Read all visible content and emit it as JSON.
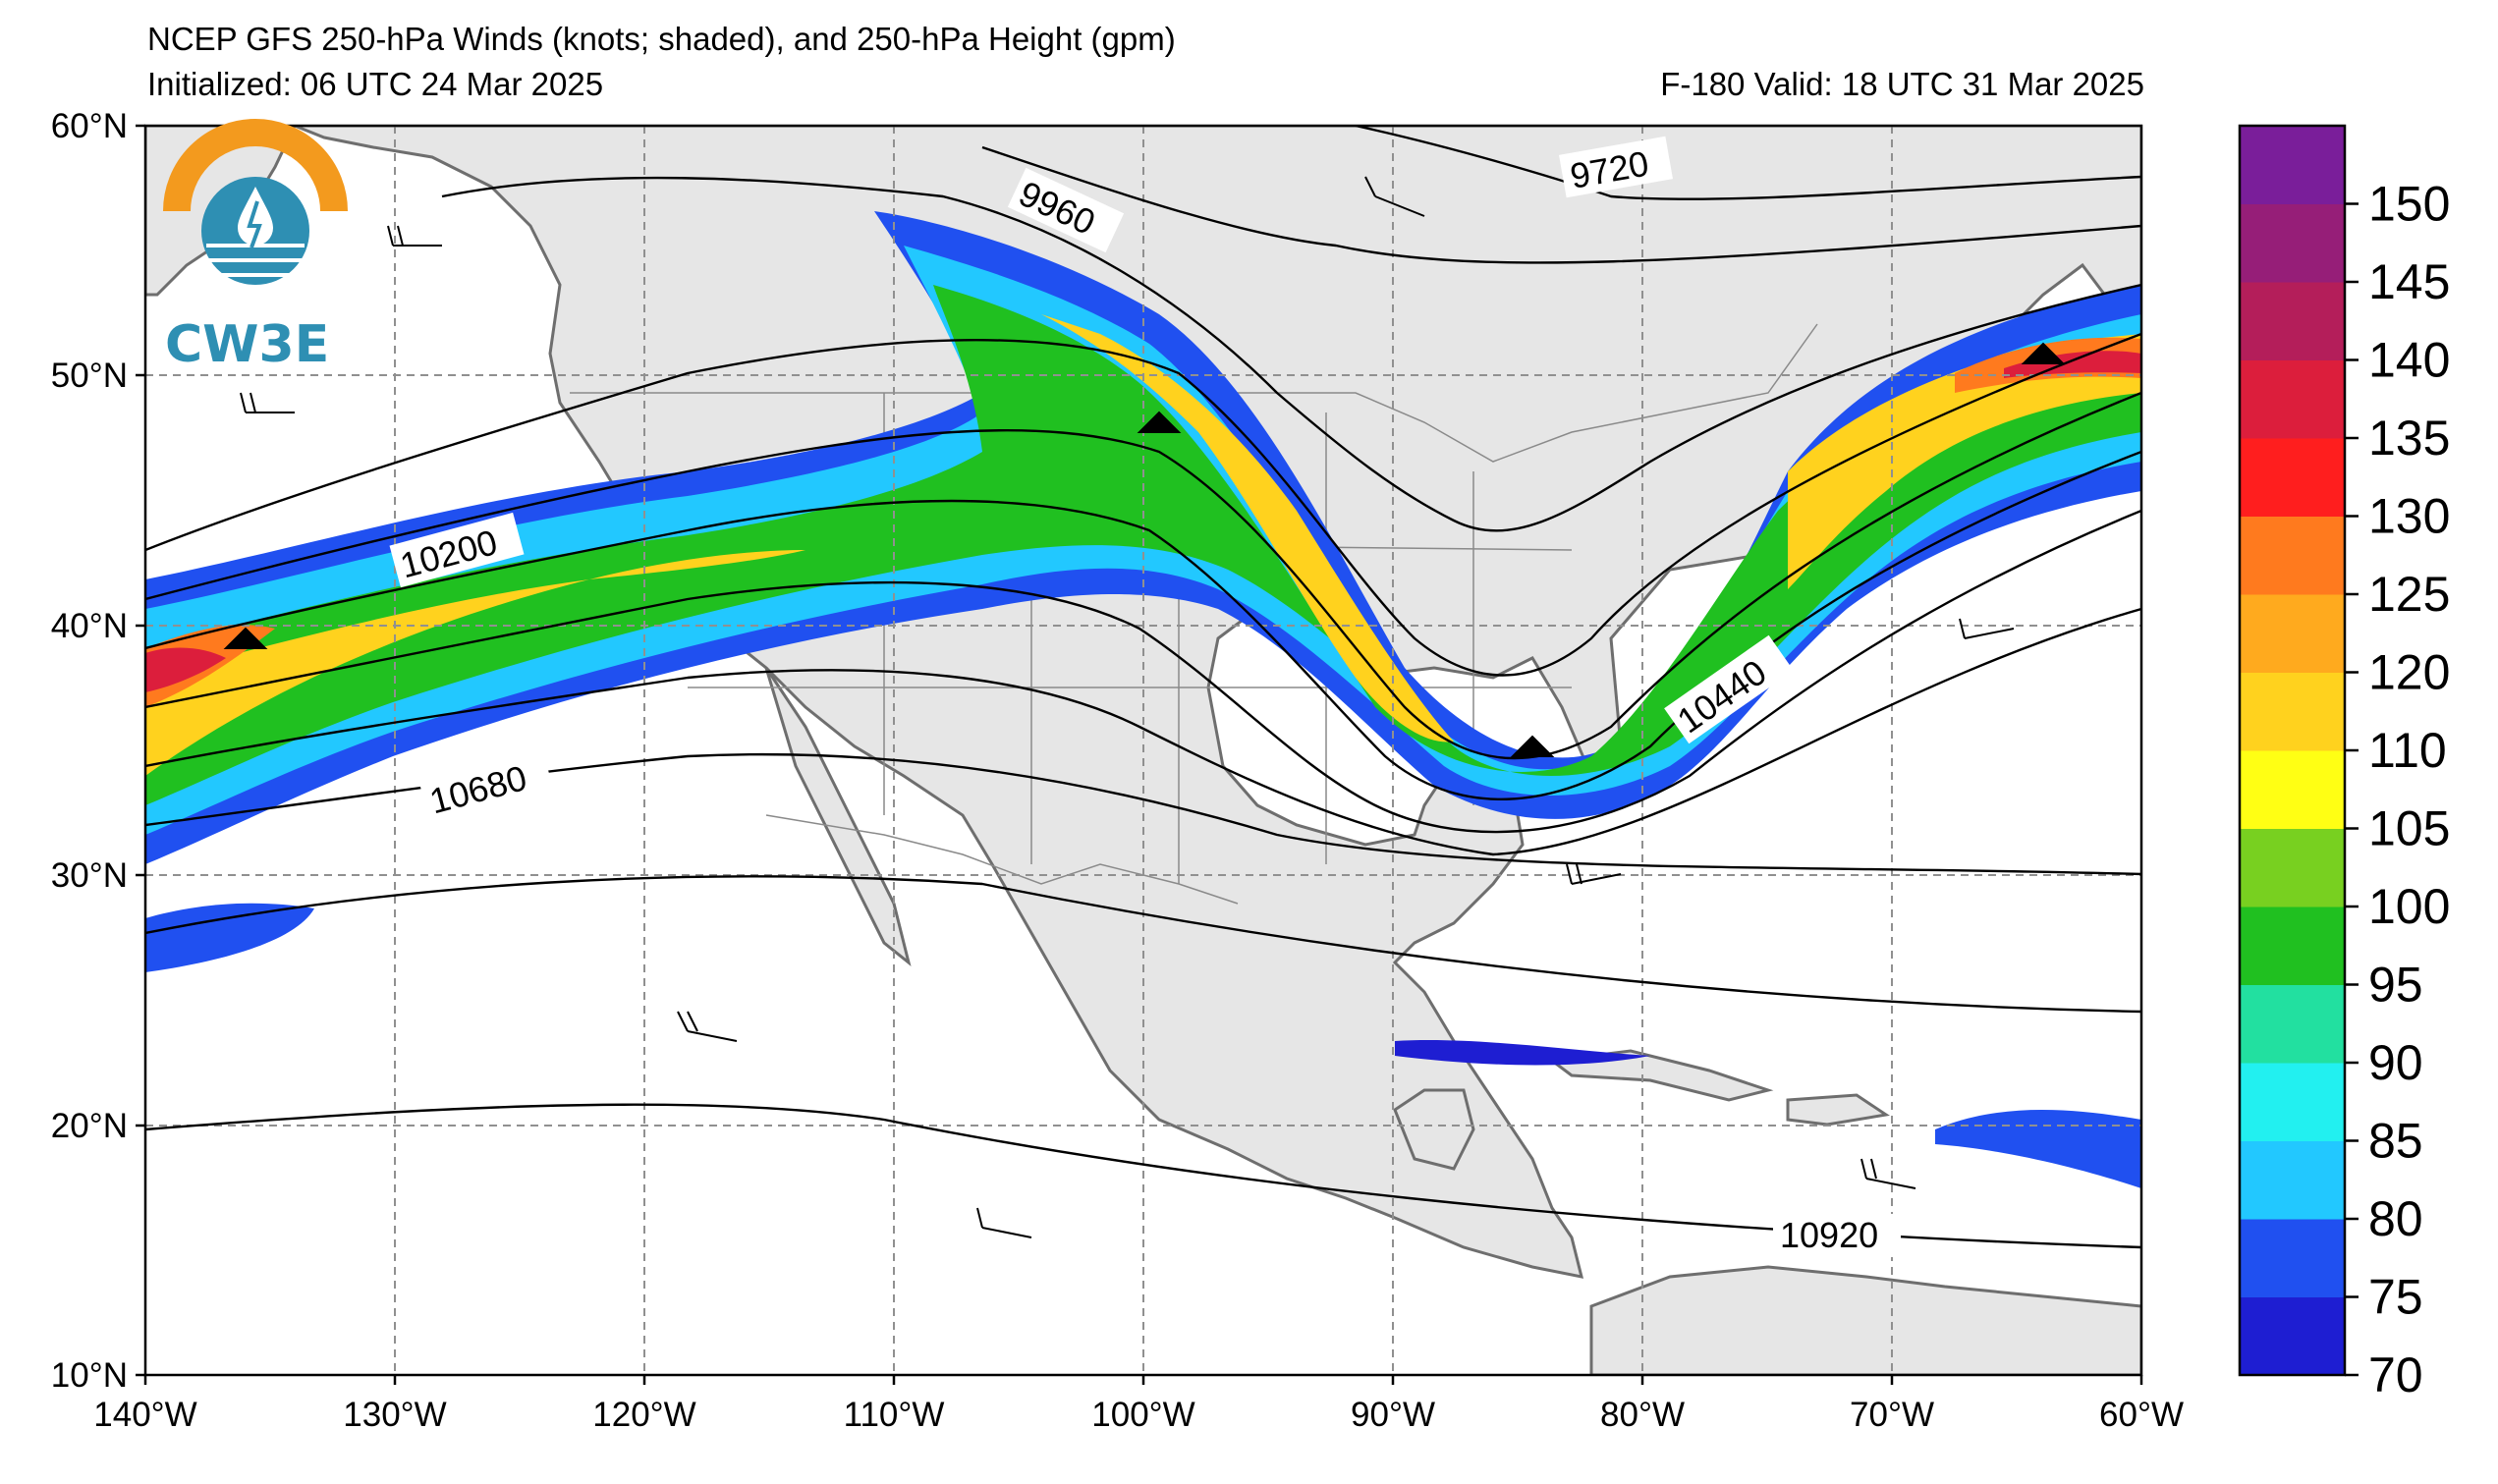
{
  "header": {
    "title": "NCEP GFS 250-hPa Winds (knots; shaded), and 250-hPa Height (gpm)",
    "initialized": "Initialized: 06 UTC 24 Mar 2025",
    "valid": "F-180  Valid: 18 UTC 31 Mar 2025"
  },
  "logo": {
    "text": "CW3E"
  },
  "axes": {
    "lon_labels": [
      "140°W",
      "130°W",
      "120°W",
      "110°W",
      "100°W",
      "90°W",
      "80°W",
      "70°W",
      "60°W"
    ],
    "lat_labels": [
      "60°N",
      "50°N",
      "40°N",
      "30°N",
      "20°N",
      "10°N"
    ]
  },
  "colorbar": {
    "levels": [
      "70",
      "75",
      "80",
      "85",
      "90",
      "95",
      "100",
      "105",
      "110",
      "120",
      "125",
      "130",
      "135",
      "140",
      "145",
      "150"
    ],
    "colors": [
      "#1e1ed2",
      "#2050f0",
      "#22c8ff",
      "#22f0f0",
      "#22e0a0",
      "#20c020",
      "#78d020",
      "#ffff14",
      "#ffd21e",
      "#ffaa1e",
      "#ff7a1e",
      "#ff1e1e",
      "#dc1e3c",
      "#b41e5a",
      "#961e78",
      "#7a1e9a"
    ]
  },
  "contour_labels": [
    "9720",
    "9960",
    "10200",
    "10440",
    "10680",
    "10920"
  ],
  "colors": {
    "land": "#e6e6e6",
    "ocean": "#ffffff",
    "coast": "#6e6e6e",
    "grid": "#909090"
  }
}
